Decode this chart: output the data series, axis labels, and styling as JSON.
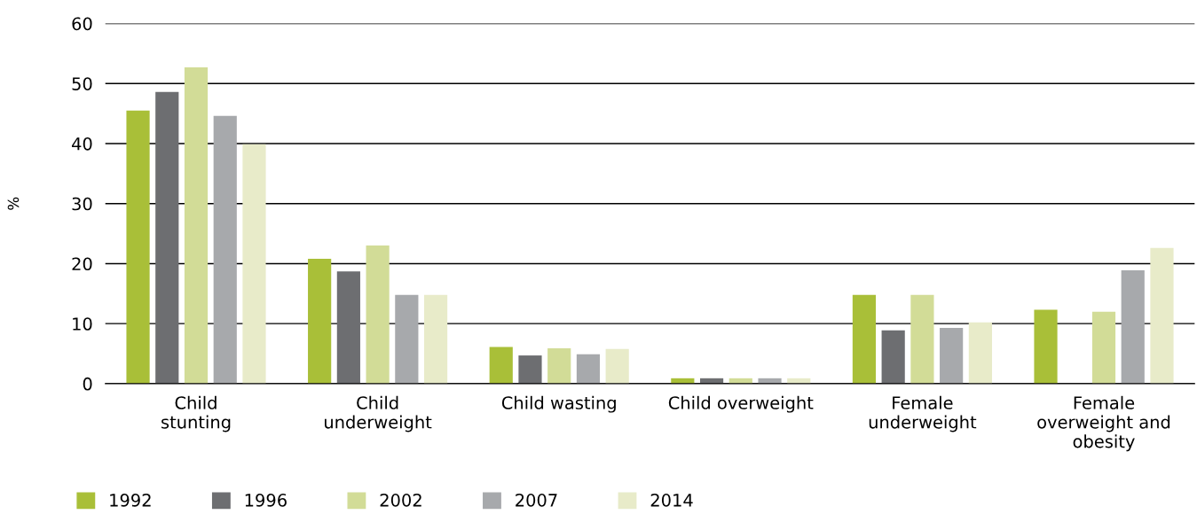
{
  "chart_data": {
    "type": "bar",
    "ylabel": "%",
    "categories": [
      "Child\nstunting",
      "Child\nunderweight",
      "Child wasting",
      "Child overweight",
      "Female\nunderweight",
      "Female\noverweight and\nobesity"
    ],
    "series": [
      {
        "name": "1992",
        "color": "#a9bf38",
        "values": [
          45.5,
          20.8,
          6.1,
          0.9,
          14.8,
          12.3
        ]
      },
      {
        "name": "1996",
        "color": "#6d6e71",
        "values": [
          48.6,
          18.7,
          4.7,
          0.9,
          8.9,
          null
        ]
      },
      {
        "name": "2002",
        "color": "#d2dc97",
        "values": [
          52.7,
          23.0,
          5.9,
          0.9,
          14.8,
          12.0
        ]
      },
      {
        "name": "2007",
        "color": "#a7a9ac",
        "values": [
          44.6,
          14.8,
          4.9,
          0.9,
          9.3,
          18.9
        ]
      },
      {
        "name": "2014",
        "color": "#e8ebc9",
        "values": [
          39.9,
          14.8,
          5.8,
          0.9,
          10.2,
          22.6
        ]
      }
    ],
    "ylim": [
      0,
      60
    ],
    "yticks": [
      0,
      10,
      20,
      30,
      40,
      50,
      60
    ],
    "grid": "y",
    "legend": "bottom left"
  }
}
